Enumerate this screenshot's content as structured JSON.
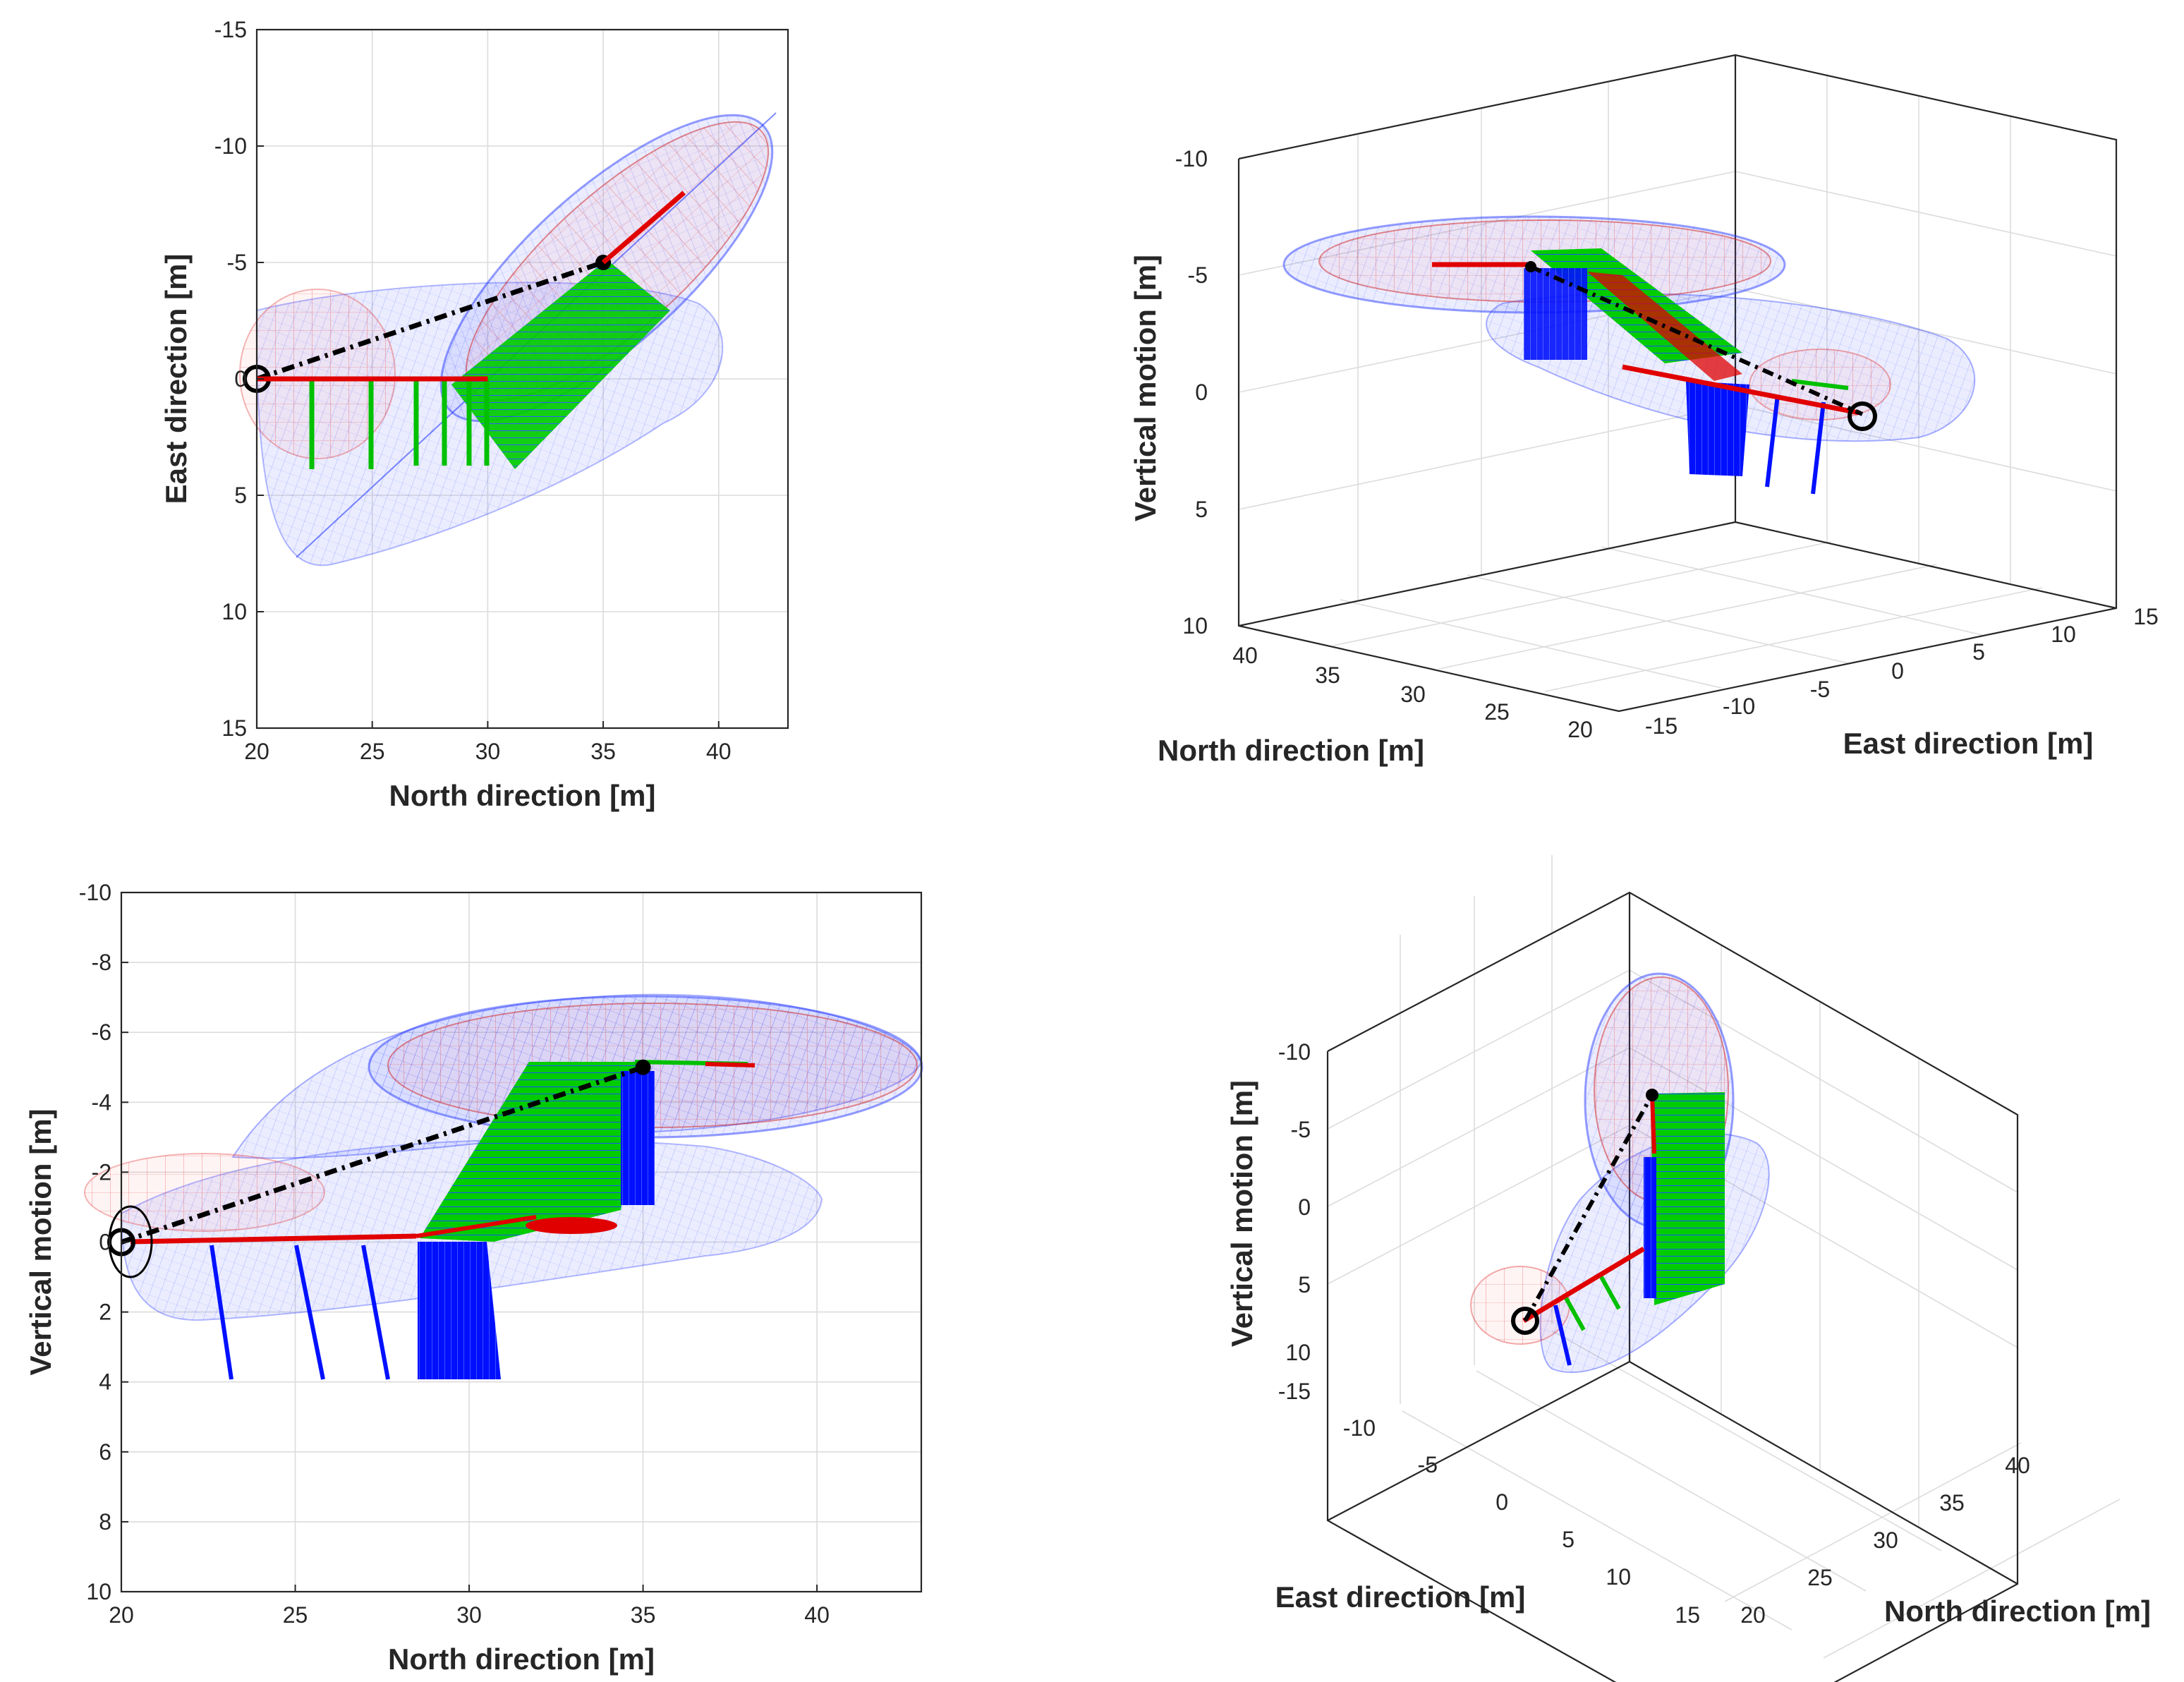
{
  "figure": {
    "description_labels": "Four views of motion envelopes with trajectory segments",
    "colors": {
      "envelope": "#2a3cff",
      "envelope_inner": "#ff3030",
      "rod": "#e00000",
      "green": "#00cc00",
      "blue": "#0000ff",
      "path": "#000000"
    }
  },
  "chart_data": [
    {
      "type": "line",
      "view": "top",
      "xlabel": "North direction [m]",
      "ylabel": "East direction [m]",
      "xlim": [
        20,
        43
      ],
      "ylim": [
        -15,
        15
      ],
      "y_reversed": true,
      "xticks": [
        "20",
        "25",
        "30",
        "35",
        "40"
      ],
      "yticks": [
        "-15",
        "-10",
        "-5",
        "0",
        "5",
        "10",
        "15"
      ],
      "grid": true,
      "series": [
        {
          "name": "path",
          "x": [
            20,
            35
          ],
          "y": [
            0,
            -5
          ]
        },
        {
          "name": "rod",
          "x": [
            35,
            38.5
          ],
          "y": [
            -5,
            -8
          ]
        }
      ]
    },
    {
      "type": "line",
      "view": "3d",
      "xlabel": "North direction [m]",
      "ylabel": "East direction [m]",
      "zlabel": "Vertical motion [m]",
      "xticks": [
        "40",
        "35",
        "30",
        "25",
        "20"
      ],
      "yticks": [
        "-15",
        "-10",
        "-5",
        "0",
        "5",
        "10",
        "15"
      ],
      "zticks": [
        "-10",
        "-5",
        "0",
        "5",
        "10"
      ],
      "grid": true
    },
    {
      "type": "line",
      "view": "side",
      "xlabel": "North direction [m]",
      "ylabel": "Vertical motion [m]",
      "xlim": [
        20,
        43
      ],
      "ylim": [
        -10,
        10
      ],
      "y_reversed": true,
      "xticks": [
        "20",
        "25",
        "30",
        "35",
        "40"
      ],
      "yticks": [
        "-10",
        "-8",
        "-6",
        "-4",
        "-2",
        "0",
        "2",
        "4",
        "6",
        "8",
        "10"
      ],
      "grid": true,
      "series": [
        {
          "name": "path",
          "x": [
            20,
            35
          ],
          "y": [
            0,
            -5
          ]
        }
      ]
    },
    {
      "type": "line",
      "view": "3d",
      "xlabel": "East direction [m]",
      "ylabel": "North direction [m]",
      "zlabel": "Vertical motion [m]",
      "xticks": [
        "-15",
        "-10",
        "-5",
        "0",
        "5",
        "10",
        "15"
      ],
      "yticks": [
        "20",
        "25",
        "30",
        "35",
        "40"
      ],
      "zticks": [
        "-10",
        "-5",
        "0",
        "5",
        "10"
      ],
      "grid": true
    }
  ]
}
